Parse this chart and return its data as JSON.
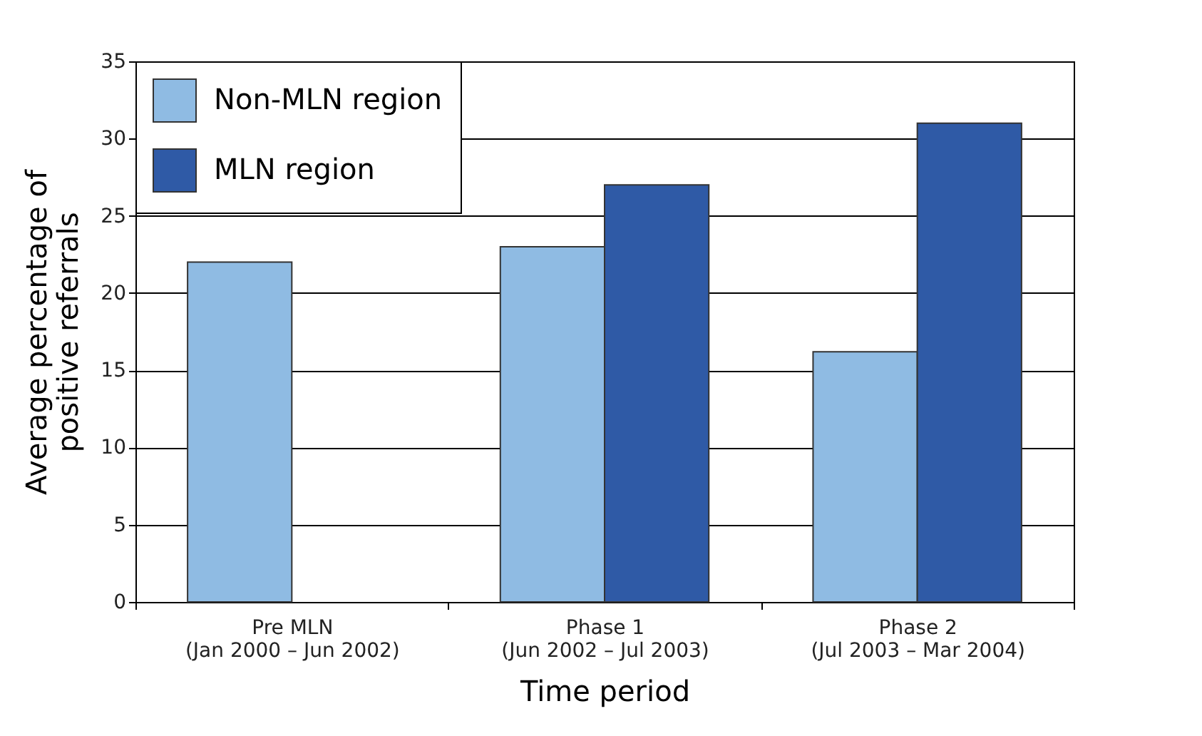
{
  "chart_data": {
    "type": "bar",
    "xlabel": "Time period",
    "ylabel": "Average percentage of\npositive referrals",
    "categories": [
      "Pre MLN\n(Jan 2000 – Jun 2002)",
      "Phase 1\n(Jun 2002 – Jul 2003)",
      "Phase 2\n(Jul 2003 – Mar 2004)"
    ],
    "series": [
      {
        "name": "Non-MLN region",
        "color": "#8fbbe3",
        "values": [
          22,
          23,
          16.2
        ]
      },
      {
        "name": "MLN region",
        "color": "#2f5aa6",
        "values": [
          null,
          27,
          31
        ]
      }
    ],
    "ylim": [
      0,
      35
    ],
    "yticks": [
      0,
      5,
      10,
      15,
      20,
      25,
      30,
      35
    ],
    "grid": "y",
    "legend": "top left"
  }
}
